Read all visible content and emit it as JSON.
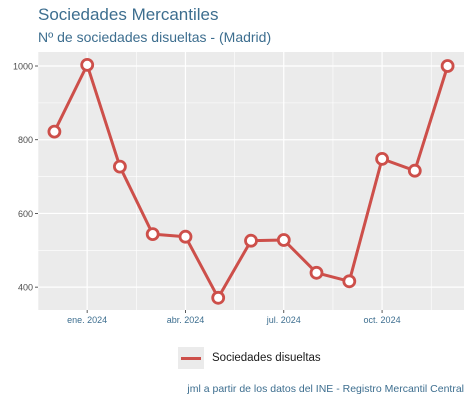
{
  "chart_data": {
    "type": "line",
    "title": "Sociedades Mercantiles",
    "subtitle": "Nº de sociedades disueltas - (Madrid)",
    "caption": "jml a partir de los datos del INE - Registro Mercantil Central",
    "xlabel": "",
    "ylabel": "",
    "x": [
      "2023-12",
      "2024-01",
      "2024-02",
      "2024-03",
      "2024-04",
      "2024-05",
      "2024-06",
      "2024-07",
      "2024-08",
      "2024-09",
      "2024-10",
      "2024-11",
      "2024-12"
    ],
    "x_tick_labels": [
      "ene. 2024",
      "abr. 2024",
      "jul. 2024",
      "oct. 2024"
    ],
    "x_tick_positions": [
      "2024-01",
      "2024-04",
      "2024-07",
      "2024-10"
    ],
    "y_tick_labels": [
      "400",
      "600",
      "800",
      "1000"
    ],
    "y_ticks": [
      400,
      600,
      800,
      1000
    ],
    "ylim": [
      338,
      1038
    ],
    "grid": true,
    "legend_position": "bottom",
    "series": [
      {
        "name": "Sociedades disueltas",
        "color": "#cd4f4a",
        "values": [
          822,
          1003,
          727,
          544,
          537,
          371,
          526,
          528,
          439,
          416,
          748,
          716,
          1000
        ]
      }
    ]
  }
}
